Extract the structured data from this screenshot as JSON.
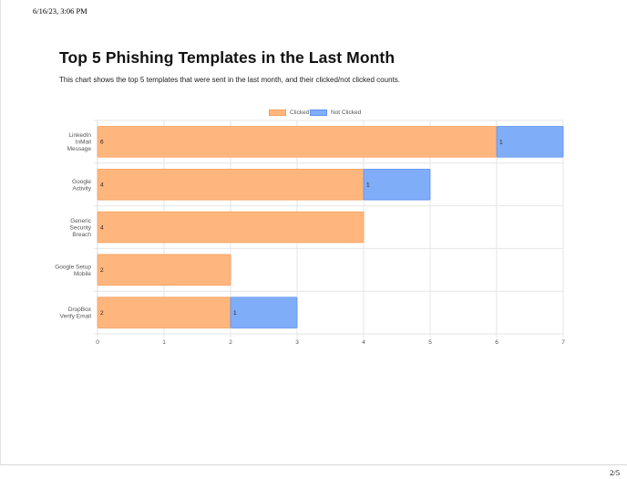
{
  "print_header": {
    "timestamp": "6/16/23, 3:06 PM"
  },
  "page_footer": {
    "page_number": "2/5"
  },
  "report": {
    "title": "Top 5 Phishing Templates in the Last Month",
    "description": "This chart shows the top 5 templates that were sent in the last month, and their clicked/not clicked counts."
  },
  "colors": {
    "clicked_fill": "#ffb67d",
    "clicked_border": "#f5a060",
    "not_clicked_fill": "#80adf8",
    "not_clicked_border": "#5f93ef",
    "grid": "#e6e6e6"
  },
  "chart_data": {
    "type": "bar",
    "orientation": "horizontal",
    "stacked": true,
    "categories": [
      [
        "LinkedIn",
        "InMail",
        "Message"
      ],
      [
        "Google",
        "Activity"
      ],
      [
        "Generic",
        "Security",
        "Breach"
      ],
      [
        "Google Setup",
        "Mobile"
      ],
      [
        "DropBox",
        "Verify Email"
      ]
    ],
    "series": [
      {
        "name": "Clicked",
        "values": [
          6,
          4,
          4,
          2,
          2
        ]
      },
      {
        "name": "Not Clicked",
        "values": [
          1,
          1,
          0,
          0,
          1
        ]
      }
    ],
    "xlim": [
      0,
      7
    ],
    "xticks": [
      0,
      1,
      2,
      3,
      4,
      5,
      6,
      7
    ],
    "grid": true,
    "legend_position": "top",
    "data_labels": true
  }
}
